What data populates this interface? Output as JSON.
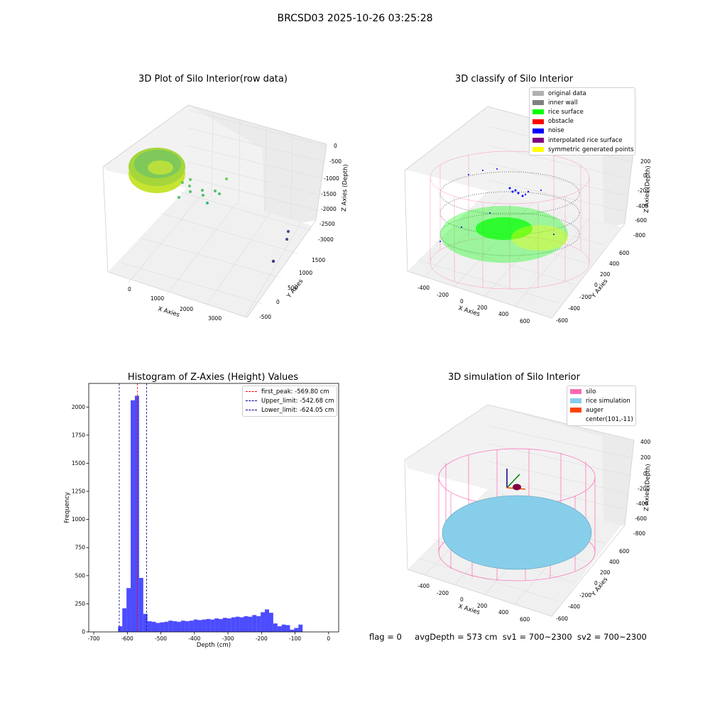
{
  "suptitle": "BRCSD03 2025-10-26 03:25:28",
  "status": {
    "flag": "flag = 0",
    "avg_depth": "avgDepth = 573 cm",
    "sv1": "sv1 = 700~2300",
    "sv2": "sv2 = 700~2300"
  },
  "colors": {
    "bars": "#0000ff",
    "peak_line": "#ff0000",
    "limit_line": "#00008b",
    "silo": "#ff69b4",
    "rice_sim": "#87ceeb",
    "auger": "#ff4500",
    "rice_surface": "#00ff00",
    "noise": "#0000ff",
    "inner_wall": "#808080"
  },
  "panels": {
    "raw": {
      "title": "3D Plot of Silo Interior(row data)",
      "xlabel": "X Axies",
      "ylabel": "Y Axies",
      "zlabel": "Z Axies (Depth)",
      "xticks": [
        "0",
        "1000",
        "2000",
        "3000"
      ],
      "yticks": [
        "-500",
        "0",
        "500",
        "1000",
        "1500"
      ],
      "zticks": [
        "0",
        "-500",
        "-1000",
        "-1500",
        "-2000",
        "-2500",
        "-3000"
      ]
    },
    "classify": {
      "title": "3D classify of Silo Interior",
      "xlabel": "X Axies",
      "ylabel": "Y Axies",
      "zlabel": "Z Axies (Depth)",
      "xticks": [
        "-400",
        "-200",
        "0",
        "200",
        "400",
        "600"
      ],
      "yticks": [
        "-600",
        "-400",
        "-200",
        "0",
        "200",
        "400",
        "600"
      ],
      "zticks": [
        "200",
        "0",
        "-200",
        "-400",
        "-600",
        "-800"
      ],
      "legend": [
        {
          "label": "original data",
          "color": "#b0b0b0"
        },
        {
          "label": "inner wall",
          "color": "#808080"
        },
        {
          "label": "rice surface",
          "color": "#00ff00"
        },
        {
          "label": "obstacle",
          "color": "#ff0000"
        },
        {
          "label": "noise",
          "color": "#0000ff"
        },
        {
          "label": "interpolated rice surface",
          "color": "#800080"
        },
        {
          "label": "symmetric generated points",
          "color": "#ffff00"
        }
      ]
    },
    "simulation": {
      "title": "3D simulation of Silo Interior",
      "xlabel": "X Axies",
      "ylabel": "Y Axies",
      "zlabel": "Z Axies (Depth)",
      "xticks": [
        "-400",
        "-200",
        "0",
        "200",
        "400",
        "600"
      ],
      "yticks": [
        "-600",
        "-400",
        "-200",
        "0",
        "200",
        "400",
        "600"
      ],
      "zticks": [
        "400",
        "200",
        "0",
        "-200",
        "-400",
        "-600",
        "-800"
      ],
      "legend": [
        {
          "label": "silo",
          "color": "#ff69b4"
        },
        {
          "label": "rice simulation",
          "color": "#87ceeb"
        },
        {
          "label": "auger",
          "color": "#ff4500"
        },
        {
          "label": "center(101,-11)",
          "color": ""
        }
      ]
    }
  },
  "chart_data": [
    {
      "type": "bar",
      "title": "Histogram of Z-Axies (Height) Values",
      "xlabel": "Depth (cm)",
      "ylabel": "Frequency",
      "xlim": [
        -715,
        30
      ],
      "ylim": [
        0,
        2210
      ],
      "xticks": [
        -700,
        -600,
        -500,
        -400,
        -300,
        -200,
        -100,
        0
      ],
      "yticks": [
        0,
        250,
        500,
        750,
        1000,
        1250,
        1500,
        1750,
        2000
      ],
      "bin_width": 12.5,
      "bin_start": -627.5,
      "values": [
        50,
        210,
        390,
        2060,
        2100,
        480,
        160,
        95,
        90,
        80,
        85,
        90,
        100,
        95,
        90,
        100,
        95,
        100,
        110,
        105,
        110,
        115,
        110,
        120,
        115,
        125,
        120,
        130,
        135,
        130,
        140,
        135,
        150,
        140,
        175,
        200,
        170,
        75,
        50,
        65,
        60,
        20,
        35,
        65
      ],
      "lines": [
        {
          "label": "first_peak: -569.80 cm",
          "x": -569.8,
          "color": "#ff0000"
        },
        {
          "label": "Upper_limit: -542.68 cm",
          "x": -542.68,
          "color": "#00008b"
        },
        {
          "label": "Lower_limit: -624.05 cm",
          "x": -624.05,
          "color": "#00008b"
        }
      ]
    }
  ]
}
